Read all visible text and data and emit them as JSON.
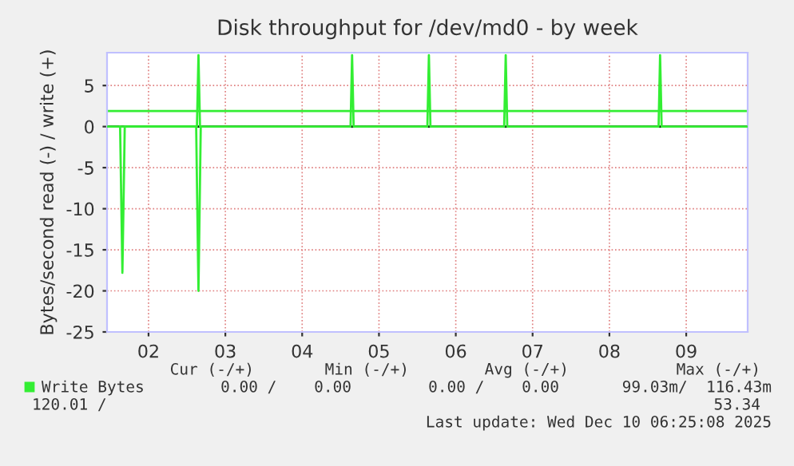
{
  "chart_data": {
    "type": "line",
    "title": "Disk throughput for /dev/md0 - by week",
    "ylabel": "Bytes/second read (-) / write (+)",
    "series": [
      {
        "name": "Write Bytes",
        "color": "#33ee33",
        "x": [
          "2025-12-01T23:02",
          "2025-12-03T03:07",
          "2025-12-03T03:36",
          "2025-12-03T04:05",
          "2025-12-05T03:07",
          "2025-12-05T03:36",
          "2025-12-05T04:05",
          "2025-12-06T03:07",
          "2025-12-06T03:36",
          "2025-12-06T04:05",
          "2025-12-07T03:07",
          "2025-12-07T03:36",
          "2025-12-07T04:05",
          "2025-12-09T03:22",
          "2025-12-09T03:50",
          "2025-12-09T04:19",
          "2025-12-10T07:12"
        ],
        "values": [
          0,
          0,
          8.7,
          0,
          0,
          8.7,
          0,
          0,
          8.7,
          0,
          0,
          8.7,
          0,
          0,
          8.7,
          0,
          0
        ]
      },
      {
        "color": "#33ee33",
        "x": [
          "2025-12-02T03:07",
          "2025-12-02T03:50",
          "2025-12-02T04:34",
          "2025-12-03T02:53",
          "2025-12-03T03:36",
          "2025-12-03T04:19"
        ],
        "values": [
          0,
          -17.8,
          0,
          0,
          -20,
          0
        ]
      }
    ],
    "ref_lines": [
      {
        "axis": "y",
        "value": 1.9,
        "color": "#33ee33"
      },
      {
        "axis": "y",
        "value": 0,
        "color": "#000000"
      }
    ],
    "xlim": [
      "2025-12-01T23:02",
      "2025-12-10T07:12"
    ],
    "xticks": [
      {
        "value": "2025-12-02T12:00",
        "label": "02"
      },
      {
        "value": "2025-12-03T12:00",
        "label": "03"
      },
      {
        "value": "2025-12-04T12:00",
        "label": "04"
      },
      {
        "value": "2025-12-05T12:00",
        "label": "05"
      },
      {
        "value": "2025-12-06T12:00",
        "label": "06"
      },
      {
        "value": "2025-12-07T12:00",
        "label": "07"
      },
      {
        "value": "2025-12-08T12:00",
        "label": "08"
      },
      {
        "value": "2025-12-09T12:00",
        "label": "09"
      }
    ],
    "ylim": [
      -25,
      9
    ],
    "yticks": [
      -25,
      -20,
      -15,
      -10,
      -5,
      0,
      5
    ],
    "grid": true,
    "legend": "bottom",
    "marker": "none",
    "line_style": "solid",
    "annotations": [
      "Cur (-/+)",
      "Min (-/+)",
      "Avg (-/+)",
      "Max (-/+)",
      "0.00 /    0.00",
      "0.00 /    0.00",
      "99.03m/  116.43m",
      "120.01 /",
      "53.34",
      "Last update: Wed Dec 10 06:25:08 2025"
    ]
  }
}
